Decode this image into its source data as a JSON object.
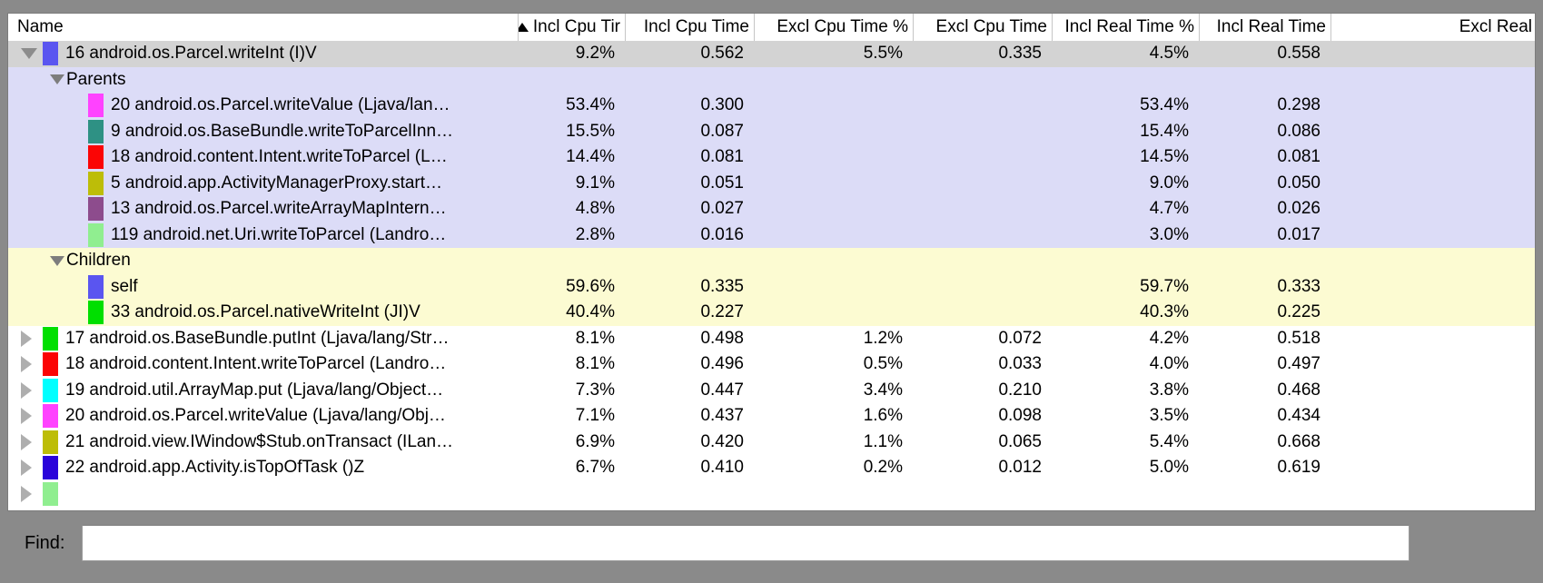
{
  "table": {
    "columns": [
      {
        "label": "Name",
        "sort": "none"
      },
      {
        "label": "Incl Cpu Tir",
        "sort": "asc"
      },
      {
        "label": "Incl Cpu Time",
        "sort": "none"
      },
      {
        "label": "Excl Cpu Time %",
        "sort": "none"
      },
      {
        "label": "Excl Cpu Time",
        "sort": "none"
      },
      {
        "label": "Incl Real Time %",
        "sort": "none"
      },
      {
        "label": "Incl Real Time",
        "sort": "none"
      },
      {
        "label": "Excl Real",
        "sort": "none"
      }
    ],
    "rows": [
      {
        "kind": "method",
        "expander": "down",
        "swatch": "#5a55f0",
        "bg": "selected",
        "name": "16 android.os.Parcel.writeInt (I)V",
        "values": [
          "9.2%",
          "0.562",
          "5.5%",
          "0.335",
          "4.5%",
          "0.558",
          ""
        ]
      },
      {
        "kind": "section",
        "expander": "down-small",
        "swatch": null,
        "bg": "parents",
        "name": "Parents",
        "values": [
          "",
          "",
          "",
          "",
          "",
          "",
          ""
        ]
      },
      {
        "kind": "sub",
        "expander": "none",
        "swatch": "#ff42ff",
        "bg": "parents",
        "name": "20 android.os.Parcel.writeValue (Ljava/lan…",
        "values": [
          "53.4%",
          "0.300",
          "",
          "",
          "53.4%",
          "0.298",
          ""
        ]
      },
      {
        "kind": "sub",
        "expander": "none",
        "swatch": "#2e9184",
        "bg": "parents",
        "name": "9 android.os.BaseBundle.writeToParcelInn…",
        "values": [
          "15.5%",
          "0.087",
          "",
          "",
          "15.4%",
          "0.086",
          ""
        ]
      },
      {
        "kind": "sub",
        "expander": "none",
        "swatch": "#fb0505",
        "bg": "parents",
        "name": "18 android.content.Intent.writeToParcel (L…",
        "values": [
          "14.4%",
          "0.081",
          "",
          "",
          "14.5%",
          "0.081",
          ""
        ]
      },
      {
        "kind": "sub",
        "expander": "none",
        "swatch": "#bdbd08",
        "bg": "parents",
        "name": "5 android.app.ActivityManagerProxy.start…",
        "values": [
          "9.1%",
          "0.051",
          "",
          "",
          "9.0%",
          "0.050",
          ""
        ]
      },
      {
        "kind": "sub",
        "expander": "none",
        "swatch": "#8d4c8d",
        "bg": "parents",
        "name": "13 android.os.Parcel.writeArrayMapIntern…",
        "values": [
          "4.8%",
          "0.027",
          "",
          "",
          "4.7%",
          "0.026",
          ""
        ]
      },
      {
        "kind": "sub",
        "expander": "none",
        "swatch": "#90ee90",
        "bg": "parents",
        "name": "119 android.net.Uri.writeToParcel (Landro…",
        "values": [
          "2.8%",
          "0.016",
          "",
          "",
          "3.0%",
          "0.017",
          ""
        ]
      },
      {
        "kind": "section",
        "expander": "down-small",
        "swatch": null,
        "bg": "children",
        "name": "Children",
        "values": [
          "",
          "",
          "",
          "",
          "",
          "",
          ""
        ]
      },
      {
        "kind": "sub",
        "expander": "none",
        "swatch": "#5a55f0",
        "bg": "children",
        "name": "self",
        "values": [
          "59.6%",
          "0.335",
          "",
          "",
          "59.7%",
          "0.333",
          ""
        ]
      },
      {
        "kind": "sub",
        "expander": "none",
        "swatch": "#00df00",
        "bg": "children",
        "name": "33 android.os.Parcel.nativeWriteInt (JI)V",
        "values": [
          "40.4%",
          "0.227",
          "",
          "",
          "40.3%",
          "0.225",
          ""
        ]
      },
      {
        "kind": "method",
        "expander": "right",
        "swatch": "#00df00",
        "bg": "white",
        "name": "17 android.os.BaseBundle.putInt (Ljava/lang/Str…",
        "values": [
          "8.1%",
          "0.498",
          "1.2%",
          "0.072",
          "4.2%",
          "0.518",
          ""
        ]
      },
      {
        "kind": "method",
        "expander": "right",
        "swatch": "#fb0505",
        "bg": "white",
        "name": "18 android.content.Intent.writeToParcel (Landro…",
        "values": [
          "8.1%",
          "0.496",
          "0.5%",
          "0.033",
          "4.0%",
          "0.497",
          ""
        ]
      },
      {
        "kind": "method",
        "expander": "right",
        "swatch": "#00ffff",
        "bg": "white",
        "name": "19 android.util.ArrayMap.put (Ljava/lang/Object…",
        "values": [
          "7.3%",
          "0.447",
          "3.4%",
          "0.210",
          "3.8%",
          "0.468",
          ""
        ]
      },
      {
        "kind": "method",
        "expander": "right",
        "swatch": "#ff42ff",
        "bg": "white",
        "name": "20 android.os.Parcel.writeValue (Ljava/lang/Obj…",
        "values": [
          "7.1%",
          "0.437",
          "1.6%",
          "0.098",
          "3.5%",
          "0.434",
          ""
        ]
      },
      {
        "kind": "method",
        "expander": "right",
        "swatch": "#bdbd08",
        "bg": "white",
        "name": "21 android.view.IWindow$Stub.onTransact (ILan…",
        "values": [
          "6.9%",
          "0.420",
          "1.1%",
          "0.065",
          "5.4%",
          "0.668",
          ""
        ]
      },
      {
        "kind": "method",
        "expander": "right",
        "swatch": "#2a04da",
        "bg": "white",
        "name": "22 android.app.Activity.isTopOfTask ()Z",
        "values": [
          "6.7%",
          "0.410",
          "0.2%",
          "0.012",
          "5.0%",
          "0.619",
          ""
        ]
      },
      {
        "kind": "method",
        "expander": "right",
        "swatch": "#90ee90",
        "bg": "white",
        "name": "",
        "values": [
          "",
          "",
          "",
          "",
          "",
          "",
          ""
        ]
      }
    ]
  },
  "find": {
    "label": "Find:",
    "value": "",
    "placeholder": ""
  },
  "colors": {
    "frame": "#8a8a8a",
    "selected_row": "#d3d3d3",
    "parents_section": "#dcdcf7",
    "children_section": "#fcfbd2",
    "header_separator": "#c6c6c6"
  }
}
